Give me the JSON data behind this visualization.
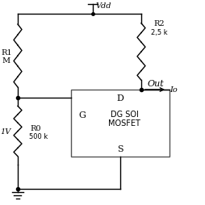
{
  "background_color": "#ffffff",
  "vdd_label": "Vdd",
  "r1_label": "R1",
  "r1_sub": "M",
  "r2_label": "R2",
  "r2_val": "2,5 k",
  "r0_label": "R0",
  "r0_val": "500 k",
  "v1_label": "1V",
  "out_label": "Out",
  "io_label": "Io",
  "g_label": "G",
  "d_label": "D",
  "s_label": "S",
  "mosfet_line1": "DG SOI",
  "mosfet_line2": "MOSFET",
  "line_color": "#000000",
  "box_color": "#555555",
  "figsize": [
    2.55,
    2.55
  ],
  "dpi": 100
}
